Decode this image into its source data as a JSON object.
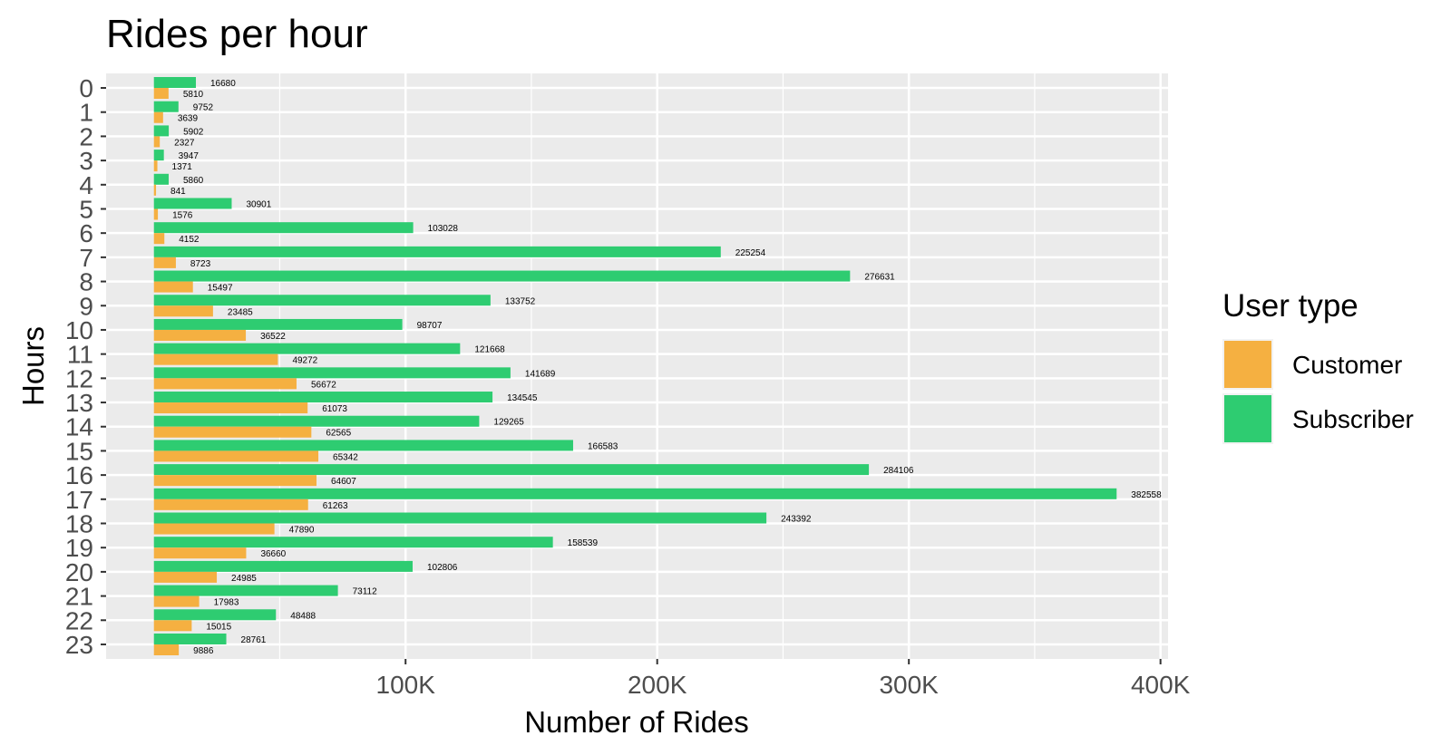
{
  "chart_data": {
    "type": "bar",
    "orientation": "horizontal",
    "title": "Rides per hour",
    "xlabel": "Number of Rides",
    "ylabel": "Hours",
    "categories": [
      "0",
      "1",
      "2",
      "3",
      "4",
      "5",
      "6",
      "7",
      "8",
      "9",
      "10",
      "11",
      "12",
      "13",
      "14",
      "15",
      "16",
      "17",
      "18",
      "19",
      "20",
      "21",
      "22",
      "23"
    ],
    "series": [
      {
        "name": "Customer",
        "color": "#F5B041",
        "values": [
          5810,
          3639,
          2327,
          1371,
          841,
          1576,
          4152,
          8723,
          15497,
          23485,
          36522,
          49272,
          56672,
          61073,
          62565,
          65342,
          64607,
          61263,
          47890,
          36660,
          24985,
          17983,
          15015,
          9886
        ]
      },
      {
        "name": "Subscriber",
        "color": "#2ECC71",
        "values": [
          16680,
          9752,
          5902,
          3947,
          5860,
          30901,
          103028,
          225254,
          276631,
          133752,
          98707,
          121668,
          141689,
          134545,
          129265,
          166583,
          284106,
          382558,
          243392,
          158539,
          102806,
          73112,
          48488,
          28761
        ]
      }
    ],
    "xticks": [
      100000,
      200000,
      300000,
      400000
    ],
    "xtick_labels": [
      "100K",
      "200K",
      "300K",
      "400K"
    ],
    "xlim": [
      -19000,
      403000
    ],
    "grid": true,
    "legend_title": "User type",
    "legend_position": "right",
    "panel_background": "#EBEBEB"
  }
}
